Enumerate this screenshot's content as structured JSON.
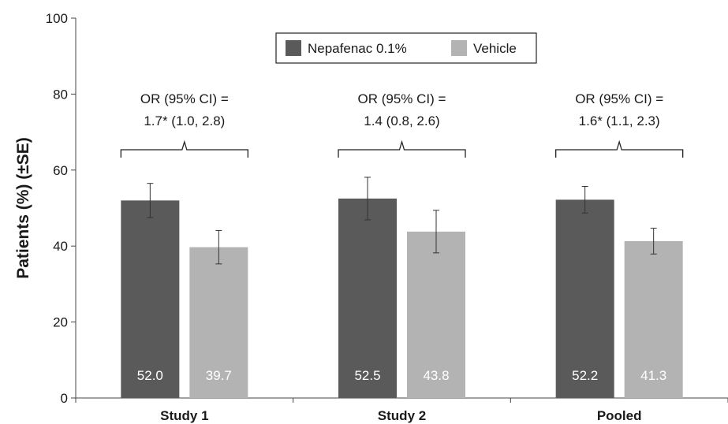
{
  "chart_data": {
    "type": "bar",
    "categories": [
      "Study 1",
      "Study 2",
      "Pooled"
    ],
    "series": [
      {
        "name": "Nepafenac 0.1%",
        "values": [
          52.0,
          52.5,
          52.2
        ],
        "error": [
          4.5,
          5.6,
          3.5
        ],
        "labels": [
          "52.0",
          "52.5",
          "52.2"
        ],
        "color": "#5a5a5a"
      },
      {
        "name": "Vehicle",
        "values": [
          39.7,
          43.8,
          41.3
        ],
        "error": [
          4.4,
          5.6,
          3.4
        ],
        "labels": [
          "39.7",
          "43.8",
          "41.3"
        ],
        "color": "#b3b3b3"
      }
    ],
    "ylabel": "Patients (%) (±SE)",
    "xlabel": "",
    "ylim": [
      0,
      100
    ],
    "yticks": [
      "0",
      "20",
      "40",
      "60",
      "80",
      "100"
    ],
    "grid": false,
    "legend_position": "top-center",
    "annotations": [
      {
        "line1": "OR (95% CI) =",
        "line2": "1.7* (1.0, 2.8)"
      },
      {
        "line1": "OR (95% CI) =",
        "line2": "1.4 (0.8, 2.6)"
      },
      {
        "line1": "OR (95% CI) =",
        "line2": "1.6* (1.1, 2.3)"
      }
    ]
  }
}
